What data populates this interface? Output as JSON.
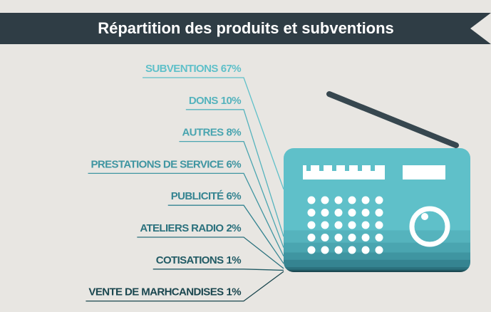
{
  "chart_data": {
    "type": "radio-bands",
    "title": "Répartition des produits et subventions",
    "categories": [
      "SUBVENTIONS",
      "DONS",
      "AUTRES",
      "PRESTATIONS DE SERVICE",
      "PUBLICITÉ",
      "ATELIERS RADIO",
      "COTISATIONS",
      "VENTE DE MARHCANDISES"
    ],
    "values": [
      67,
      10,
      8,
      6,
      6,
      2,
      1,
      1
    ],
    "value_labels": [
      "67%",
      "10%",
      "8%",
      "6%",
      "6%",
      "2%",
      "1%",
      "1%"
    ],
    "colors": [
      "#5fc0c9",
      "#55b3bd",
      "#4aa5b0",
      "#3f95a1",
      "#358491",
      "#2b717d",
      "#225b65",
      "#1b474f"
    ]
  }
}
